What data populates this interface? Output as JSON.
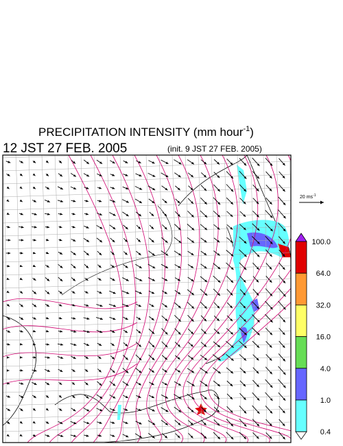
{
  "header": {
    "title_main": "PRECIPITATION INTENSITY (mm hour",
    "title_sup": "-1",
    "title_end": ")",
    "time": "12 JST 27 FEB. 2005",
    "init": "(init. 9 JST 27 FEB. 2005)"
  },
  "legend": {
    "scale_label": "20 ms",
    "scale_sup": "-1"
  },
  "colorbar": {
    "over_color": "#a020f0",
    "under_color": "#ffffff",
    "levels": [
      {
        "label": "100.0",
        "color": "#e00000"
      },
      {
        "label": "64.0",
        "color": "#ff9933"
      },
      {
        "label": "32.0",
        "color": "#ffff66"
      },
      {
        "label": "16.0",
        "color": "#66dd55"
      },
      {
        "label": "4.0",
        "color": "#6666ff"
      },
      {
        "label": "1.0",
        "color": "#66ffff"
      },
      {
        "label": "0.4",
        "color": null
      }
    ]
  }
}
